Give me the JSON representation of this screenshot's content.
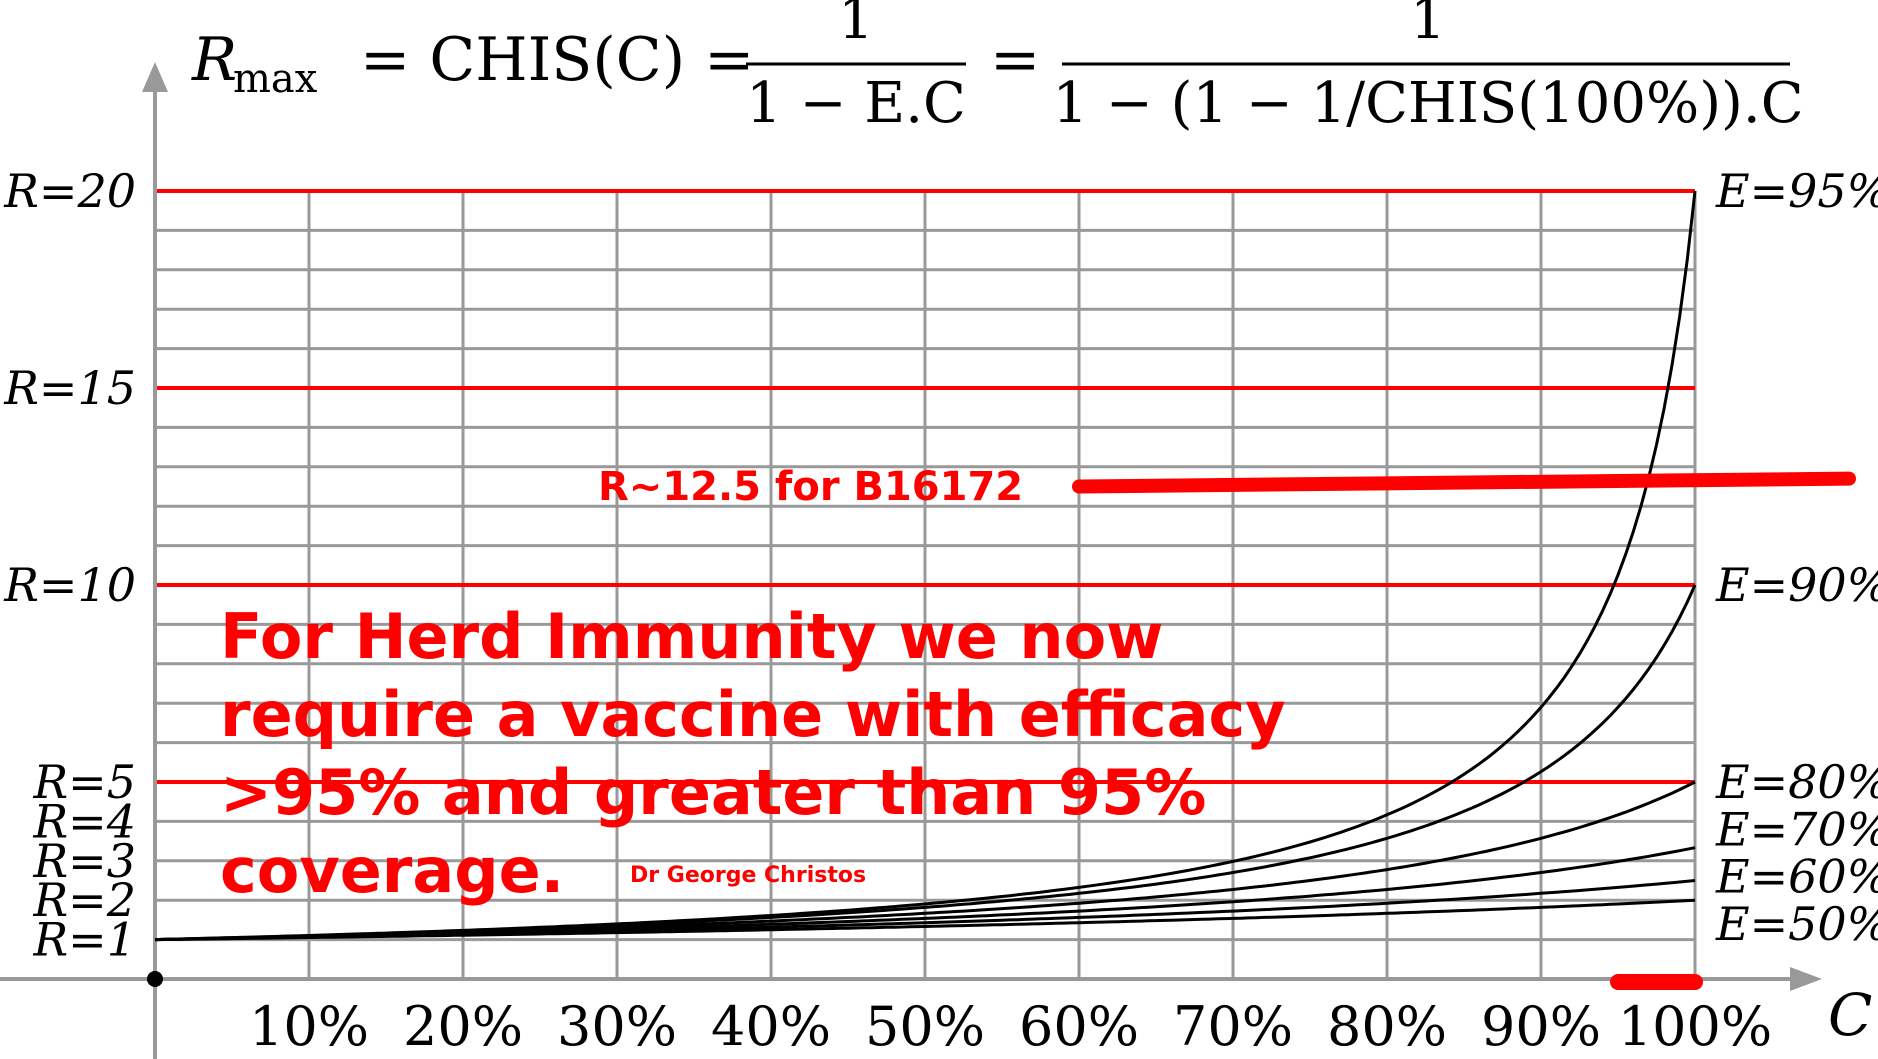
{
  "chart_data": {
    "type": "line",
    "title": "",
    "formula": {
      "lhs": "R",
      "lhs_sub": "max",
      "eq": "= CHIS(C) =",
      "frac1_num": "1",
      "frac1_den": "1 − E.C",
      "eq2": "=",
      "frac2_num": "1",
      "frac2_den": "1 − (1 − 1/CHIS(100%)).C"
    },
    "xlabel": "C",
    "ylabel": "",
    "x_axis": {
      "range": [
        0,
        100
      ],
      "unit": "%",
      "ticks": [
        10,
        20,
        30,
        40,
        50,
        60,
        70,
        80,
        90,
        100
      ],
      "tick_labels": [
        "10%",
        "20%",
        "30%",
        "40%",
        "50%",
        "60%",
        "70%",
        "80%",
        "90%",
        "100%"
      ]
    },
    "y_axis": {
      "range": [
        0,
        20
      ],
      "minor_grid_step": 1,
      "labeled_ticks": [
        {
          "value": 20,
          "label": "R=20"
        },
        {
          "value": 15,
          "label": "R=15"
        },
        {
          "value": 10,
          "label": "R=10"
        },
        {
          "value": 5,
          "label": "R=5"
        },
        {
          "value": 4,
          "label": "R=4"
        },
        {
          "value": 3,
          "label": "R=3"
        },
        {
          "value": 2,
          "label": "R=2"
        },
        {
          "value": 1,
          "label": "R=1"
        }
      ],
      "red_lines": [
        5,
        10,
        15,
        20
      ]
    },
    "grid": true,
    "series": [
      {
        "name": "E=95%",
        "efficacy": 0.95,
        "x": [
          0,
          10,
          20,
          30,
          40,
          50,
          60,
          70,
          80,
          90,
          100
        ],
        "values": [
          1,
          1.1,
          1.23,
          1.4,
          1.61,
          1.9,
          2.33,
          2.99,
          4.17,
          6.9,
          20
        ]
      },
      {
        "name": "E=90%",
        "efficacy": 0.9,
        "x": [
          0,
          10,
          20,
          30,
          40,
          50,
          60,
          70,
          80,
          90,
          100
        ],
        "values": [
          1,
          1.1,
          1.22,
          1.37,
          1.56,
          1.82,
          2.17,
          2.7,
          3.57,
          5.26,
          10
        ]
      },
      {
        "name": "E=80%",
        "efficacy": 0.8,
        "x": [
          0,
          10,
          20,
          30,
          40,
          50,
          60,
          70,
          80,
          90,
          100
        ],
        "values": [
          1,
          1.09,
          1.19,
          1.32,
          1.47,
          1.67,
          1.92,
          2.27,
          2.78,
          3.57,
          5
        ]
      },
      {
        "name": "E=70%",
        "efficacy": 0.7,
        "x": [
          0,
          10,
          20,
          30,
          40,
          50,
          60,
          70,
          80,
          90,
          100
        ],
        "values": [
          1,
          1.08,
          1.16,
          1.27,
          1.39,
          1.54,
          1.72,
          1.96,
          2.27,
          2.7,
          3.33
        ]
      },
      {
        "name": "E=60%",
        "efficacy": 0.6,
        "x": [
          0,
          10,
          20,
          30,
          40,
          50,
          60,
          70,
          80,
          90,
          100
        ],
        "values": [
          1,
          1.06,
          1.14,
          1.22,
          1.32,
          1.43,
          1.56,
          1.72,
          1.92,
          2.17,
          2.5
        ]
      },
      {
        "name": "E=50%",
        "efficacy": 0.5,
        "x": [
          0,
          10,
          20,
          30,
          40,
          50,
          60,
          70,
          80,
          90,
          100
        ],
        "values": [
          1,
          1.05,
          1.11,
          1.18,
          1.25,
          1.33,
          1.43,
          1.54,
          1.67,
          1.82,
          2
        ]
      }
    ],
    "series_label_values": [
      {
        "name": "E=95%",
        "y": 20
      },
      {
        "name": "E=90%",
        "y": 10
      },
      {
        "name": "E=80%",
        "y": 5
      },
      {
        "name": "E=70%",
        "y": 3.8
      },
      {
        "name": "E=60%",
        "y": 2.6
      },
      {
        "name": "E=50%",
        "y": 1.4
      }
    ],
    "annotations": {
      "b_line_label": "R~12.5 for B16172",
      "b_line": {
        "x_start": 60,
        "x_end": 110,
        "y_start": 12.5,
        "y_end": 12.7
      },
      "coverage_mark": {
        "x_start": 95,
        "x_end": 100,
        "y": 0
      },
      "herd_text": [
        "For Herd Immunity we now",
        "require a vaccine with efficacy",
        ">95% and greater than 95%",
        "coverage."
      ],
      "author": "Dr George Christos"
    },
    "colors": {
      "curve": "#000000",
      "grid": "#999999",
      "red": "#ff0000",
      "axis": "#999999",
      "text": "#000000"
    }
  }
}
